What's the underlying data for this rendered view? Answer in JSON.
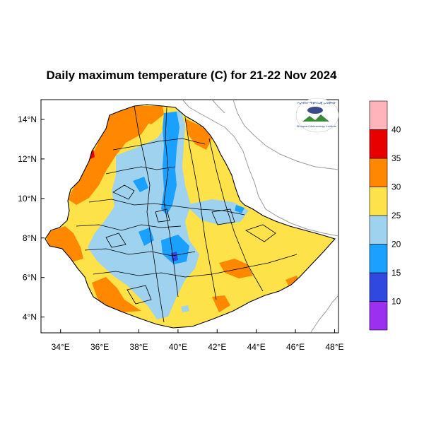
{
  "title": "Daily maximum temperature (C) for 21-22 Nov 2024",
  "map": {
    "lon_range": [
      33,
      48.2
    ],
    "lat_range": [
      3.2,
      15
    ],
    "x_ticks": [
      "34°E",
      "36°E",
      "38°E",
      "40°E",
      "42°E",
      "44°E",
      "46°E",
      "48°E"
    ],
    "x_tick_values": [
      34,
      36,
      38,
      40,
      42,
      44,
      46,
      48
    ],
    "y_ticks": [
      "14°N",
      "12°N",
      "10°N",
      "8°N",
      "6°N",
      "4°N"
    ],
    "y_tick_values": [
      14,
      12,
      10,
      8,
      6,
      4
    ]
  },
  "colorbar": {
    "levels": [
      "10",
      "15",
      "20",
      "25",
      "30",
      "35",
      "40"
    ],
    "bins": [
      {
        "range": "<10",
        "color": "#9b30f0"
      },
      {
        "range": "10-15",
        "color": "#3148e0"
      },
      {
        "range": "15-20",
        "color": "#1aa0ff"
      },
      {
        "range": "20-25",
        "color": "#9fd2ef"
      },
      {
        "range": "25-30",
        "color": "#fde24a"
      },
      {
        "range": "30-35",
        "color": "#ff8800"
      },
      {
        "range": "35-40",
        "color": "#e80000"
      },
      {
        "range": ">40",
        "color": "#ffb3ba"
      }
    ]
  },
  "logo": {
    "icon": "ethiopian-meteorology-institute-logo",
    "text_top": "የኢትዮጵያ ሚቲዮሮሎጂ ኢንስቲትዩት",
    "text_bottom": "Ethiopian Meteorology Institute"
  },
  "colors": {
    "yellow": "#fde24a",
    "orange": "#ff8800",
    "lightblue": "#9fd2ef",
    "blue": "#1aa0ff",
    "darkblue": "#3148e0",
    "red": "#e80000",
    "neighbor_border": "#9a9a9a"
  }
}
